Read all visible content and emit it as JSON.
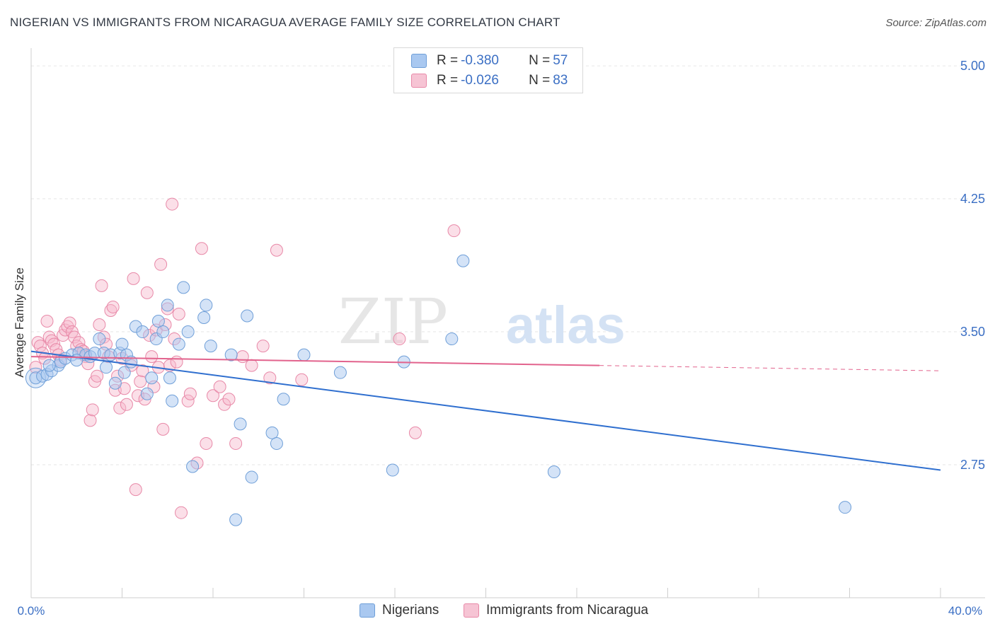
{
  "header": {
    "title": "NIGERIAN VS IMMIGRANTS FROM NICARAGUA AVERAGE FAMILY SIZE CORRELATION CHART",
    "source": "Source: ZipAtlas.com"
  },
  "legend_top": {
    "rows": [
      {
        "r_label": "R = ",
        "r_value": "-0.380",
        "n_label": "N = ",
        "n_value": "57"
      },
      {
        "r_label": "R = ",
        "r_value": "-0.026",
        "n_label": "N = ",
        "n_value": "83"
      }
    ]
  },
  "watermark": {
    "part1": "ZIP",
    "part2": "atlas"
  },
  "colors": {
    "blue_fill": "#a9c8f0",
    "blue_stroke": "#6f9fd8",
    "blue_line": "#2f6fcf",
    "pink_fill": "#f6b8cc",
    "pink_stroke": "#e889a8",
    "pink_line": "#e2638d",
    "tick_label": "#3b6fc4",
    "grid": "#e6e6e6"
  },
  "chart_data": {
    "type": "scatter",
    "title": "NIGERIAN VS IMMIGRANTS FROM NICARAGUA AVERAGE FAMILY SIZE CORRELATION CHART",
    "xlabel": "",
    "ylabel": "Average Family Size",
    "xlim": [
      0,
      40
    ],
    "ylim": [
      2.0,
      5.1
    ],
    "x_tick_labels": [
      "0.0%",
      "40.0%"
    ],
    "y_ticks": [
      2.75,
      3.5,
      4.25,
      5.0
    ],
    "y_tick_labels": [
      "2.75",
      "3.50",
      "4.25",
      "5.00"
    ],
    "grid": true,
    "legend_position": "bottom",
    "series": [
      {
        "name": "Nigerians",
        "r": -0.38,
        "n": 57,
        "trend": {
          "x": [
            0,
            40
          ],
          "y": [
            3.39,
            2.72
          ]
        },
        "points": [
          [
            0.2,
            3.24
          ],
          [
            0.5,
            3.25
          ],
          [
            0.7,
            3.26
          ],
          [
            0.9,
            3.28
          ],
          [
            1.2,
            3.31
          ],
          [
            1.3,
            3.33
          ],
          [
            1.5,
            3.35
          ],
          [
            1.8,
            3.37
          ],
          [
            2.1,
            3.38
          ],
          [
            2.4,
            3.37
          ],
          [
            2.6,
            3.36
          ],
          [
            2.8,
            3.38
          ],
          [
            3.0,
            3.46
          ],
          [
            3.2,
            3.38
          ],
          [
            3.3,
            3.3
          ],
          [
            3.5,
            3.37
          ],
          [
            3.7,
            3.21
          ],
          [
            3.9,
            3.38
          ],
          [
            4.0,
            3.43
          ],
          [
            4.2,
            3.37
          ],
          [
            4.4,
            3.33
          ],
          [
            4.6,
            3.53
          ],
          [
            4.9,
            3.5
          ],
          [
            5.1,
            3.15
          ],
          [
            5.3,
            3.24
          ],
          [
            5.5,
            3.46
          ],
          [
            5.6,
            3.56
          ],
          [
            5.8,
            3.5
          ],
          [
            6.0,
            3.65
          ],
          [
            6.1,
            3.24
          ],
          [
            6.2,
            3.11
          ],
          [
            6.5,
            3.43
          ],
          [
            6.7,
            3.75
          ],
          [
            6.9,
            3.5
          ],
          [
            7.1,
            2.74
          ],
          [
            7.6,
            3.58
          ],
          [
            7.7,
            3.65
          ],
          [
            7.9,
            3.42
          ],
          [
            8.8,
            3.37
          ],
          [
            9.0,
            2.44
          ],
          [
            9.2,
            2.98
          ],
          [
            9.5,
            3.59
          ],
          [
            9.7,
            2.68
          ],
          [
            10.6,
            2.93
          ],
          [
            10.8,
            2.87
          ],
          [
            11.1,
            3.12
          ],
          [
            12.0,
            3.37
          ],
          [
            13.6,
            3.27
          ],
          [
            15.9,
            2.72
          ],
          [
            16.4,
            3.33
          ],
          [
            18.5,
            3.46
          ],
          [
            19.0,
            3.9
          ],
          [
            23.0,
            2.71
          ],
          [
            35.8,
            2.51
          ],
          [
            0.8,
            3.31
          ],
          [
            2.0,
            3.34
          ],
          [
            4.1,
            3.27
          ]
        ]
      },
      {
        "name": "Immigrants from Nicaragua",
        "r": -0.026,
        "n": 83,
        "trend_solid": {
          "x": [
            0,
            25
          ],
          "y": [
            3.36,
            3.31
          ]
        },
        "trend_dashed": {
          "x": [
            25,
            40
          ],
          "y": [
            3.31,
            3.28
          ]
        },
        "points": [
          [
            0.2,
            3.3
          ],
          [
            0.3,
            3.44
          ],
          [
            0.4,
            3.42
          ],
          [
            0.5,
            3.38
          ],
          [
            0.6,
            3.35
          ],
          [
            0.7,
            3.56
          ],
          [
            0.8,
            3.47
          ],
          [
            0.9,
            3.45
          ],
          [
            1.0,
            3.43
          ],
          [
            1.1,
            3.4
          ],
          [
            1.2,
            3.37
          ],
          [
            1.3,
            3.34
          ],
          [
            1.4,
            3.48
          ],
          [
            1.5,
            3.51
          ],
          [
            1.6,
            3.53
          ],
          [
            1.7,
            3.55
          ],
          [
            1.8,
            3.5
          ],
          [
            1.9,
            3.47
          ],
          [
            2.0,
            3.42
          ],
          [
            2.1,
            3.44
          ],
          [
            2.2,
            3.4
          ],
          [
            2.3,
            3.39
          ],
          [
            2.4,
            3.36
          ],
          [
            2.5,
            3.32
          ],
          [
            2.6,
            3.0
          ],
          [
            2.7,
            3.06
          ],
          [
            2.8,
            3.22
          ],
          [
            2.9,
            3.25
          ],
          [
            3.0,
            3.54
          ],
          [
            3.1,
            3.76
          ],
          [
            3.2,
            3.47
          ],
          [
            3.3,
            3.43
          ],
          [
            3.4,
            3.36
          ],
          [
            3.5,
            3.62
          ],
          [
            3.6,
            3.64
          ],
          [
            3.7,
            3.17
          ],
          [
            3.8,
            3.25
          ],
          [
            3.9,
            3.07
          ],
          [
            4.0,
            3.35
          ],
          [
            4.1,
            3.18
          ],
          [
            4.2,
            3.09
          ],
          [
            4.4,
            3.31
          ],
          [
            4.5,
            3.8
          ],
          [
            4.6,
            2.61
          ],
          [
            4.7,
            3.14
          ],
          [
            4.8,
            3.22
          ],
          [
            4.9,
            3.28
          ],
          [
            5.0,
            3.12
          ],
          [
            5.1,
            3.72
          ],
          [
            5.2,
            3.48
          ],
          [
            5.3,
            3.36
          ],
          [
            5.4,
            3.19
          ],
          [
            5.5,
            3.51
          ],
          [
            5.6,
            3.3
          ],
          [
            5.7,
            3.88
          ],
          [
            5.8,
            2.95
          ],
          [
            5.9,
            3.54
          ],
          [
            6.0,
            3.63
          ],
          [
            6.1,
            3.31
          ],
          [
            6.2,
            4.22
          ],
          [
            6.3,
            3.46
          ],
          [
            6.4,
            3.33
          ],
          [
            6.5,
            3.6
          ],
          [
            6.6,
            2.48
          ],
          [
            6.9,
            3.11
          ],
          [
            7.0,
            3.15
          ],
          [
            7.3,
            2.76
          ],
          [
            7.5,
            3.97
          ],
          [
            7.7,
            2.87
          ],
          [
            8.0,
            3.14
          ],
          [
            8.3,
            3.19
          ],
          [
            8.5,
            3.09
          ],
          [
            8.7,
            3.12
          ],
          [
            9.0,
            2.87
          ],
          [
            9.3,
            3.36
          ],
          [
            9.7,
            3.31
          ],
          [
            10.2,
            3.42
          ],
          [
            10.5,
            3.24
          ],
          [
            10.8,
            3.96
          ],
          [
            11.9,
            3.23
          ],
          [
            16.2,
            3.46
          ],
          [
            16.9,
            2.93
          ],
          [
            18.6,
            4.07
          ]
        ]
      }
    ]
  },
  "bottom_legend": {
    "items": [
      "Nigerians",
      "Immigrants from Nicaragua"
    ]
  }
}
